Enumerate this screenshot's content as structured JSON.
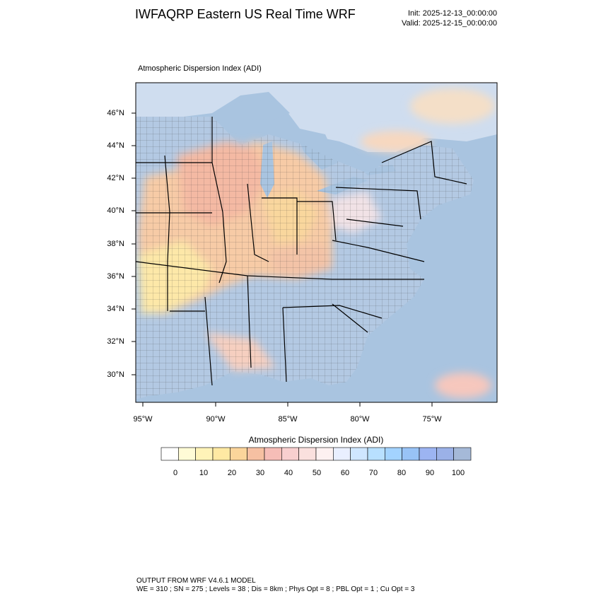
{
  "header": {
    "title": "IWFAQRP Eastern US Real Time WRF",
    "init": "Init: 2025-12-13_00:00:00",
    "valid": "Valid: 2025-12-15_00:00:00"
  },
  "map": {
    "subtitle": "Atmospheric Dispersion Index   (ADI)",
    "lat_labels": [
      "46°N",
      "44°N",
      "42°N",
      "40°N",
      "38°N",
      "36°N",
      "34°N",
      "32°N",
      "30°N"
    ],
    "lon_labels": [
      "95°W",
      "90°W",
      "85°W",
      "80°W",
      "75°W"
    ],
    "colors": {
      "ocean": "#a9c4e0",
      "water": "#a9c4e0",
      "warm_core": "#f3c7a7",
      "yellow": "#fdeeb6",
      "light": "#dbe7f4",
      "border": "#000000"
    }
  },
  "colorbar": {
    "title": "Atmospheric Dispersion Index  (ADI)",
    "labels": [
      "0",
      "10",
      "20",
      "30",
      "40",
      "50",
      "60",
      "70",
      "80",
      "90",
      "100"
    ],
    "colors": [
      "#ffffff",
      "#fffbd6",
      "#fff3b8",
      "#ffe9a3",
      "#fbd59b",
      "#f6c0a2",
      "#f6bdb7",
      "#f8cfcf",
      "#fae0de",
      "#fdf1f1",
      "#e9efff",
      "#cfe6ff",
      "#b8e0ff",
      "#a3d3ff",
      "#98c3f6",
      "#9cb4f2",
      "#9bb1e7",
      "#a5b9d8"
    ]
  },
  "footer": {
    "line1": "OUTPUT FROM WRF V4.6.1 MODEL",
    "line2": "WE = 310 ; SN = 275 ; Levels = 38 ; Dis = 8km ; Phys Opt = 8 ; PBL Opt = 1 ; Cu Opt = 3"
  }
}
